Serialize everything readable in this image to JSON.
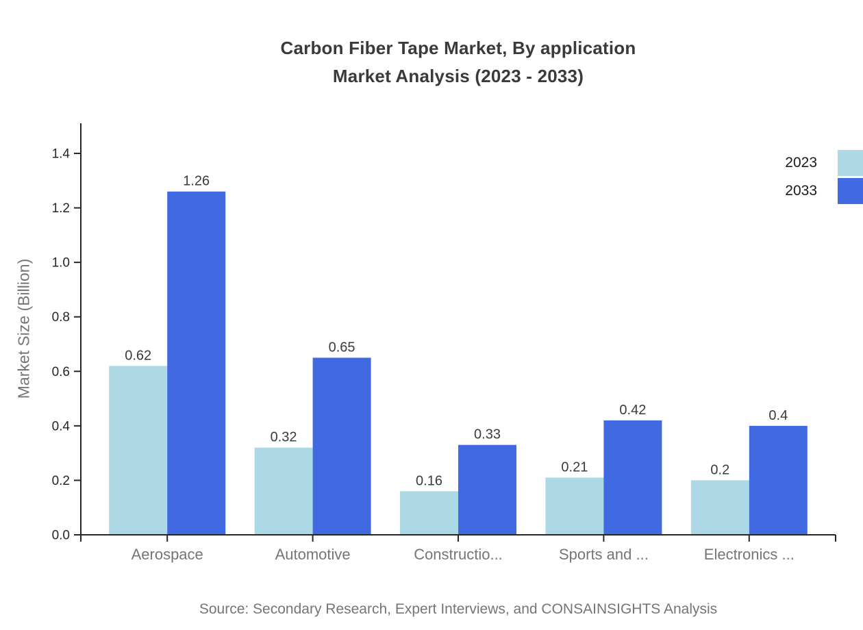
{
  "title": {
    "line1": "Carbon Fiber Tape Market, By application",
    "line2": "Market Analysis (2023 - 2033)"
  },
  "source": "Source: Secondary Research, Expert Interviews, and CONSAINSIGHTS Analysis",
  "colors": {
    "series_2023": "#ADD8E6",
    "series_2033": "#4169E1",
    "axis": "#262626",
    "title_text": "#3a3a3a",
    "muted_text": "#757575",
    "background": "#ffffff"
  },
  "chart_data": {
    "type": "bar",
    "title": "Carbon Fiber Tape Market, By application Market Analysis (2023 - 2033)",
    "categories": [
      "Aerospace",
      "Automotive",
      "Constructio...",
      "Sports and ...",
      "Electronics ..."
    ],
    "series": [
      {
        "name": "2023",
        "color": "#ADD8E6",
        "values": [
          0.62,
          0.32,
          0.16,
          0.21,
          0.2
        ]
      },
      {
        "name": "2033",
        "color": "#4169E1",
        "values": [
          1.26,
          0.65,
          0.33,
          0.42,
          0.4
        ]
      }
    ],
    "value_labels": [
      "0.62",
      "1.26",
      "0.32",
      "0.65",
      "0.16",
      "0.33",
      "0.21",
      "0.42",
      "0.2",
      "0.4"
    ],
    "xlabel": "",
    "ylabel": "Market Size (Billion)",
    "ylim": [
      0,
      1.5
    ],
    "yticks": [
      "0.0",
      "0.2",
      "0.4",
      "0.6",
      "0.8",
      "1.0",
      "1.2",
      "1.4"
    ],
    "grid": false,
    "legend_position": "top-right"
  }
}
